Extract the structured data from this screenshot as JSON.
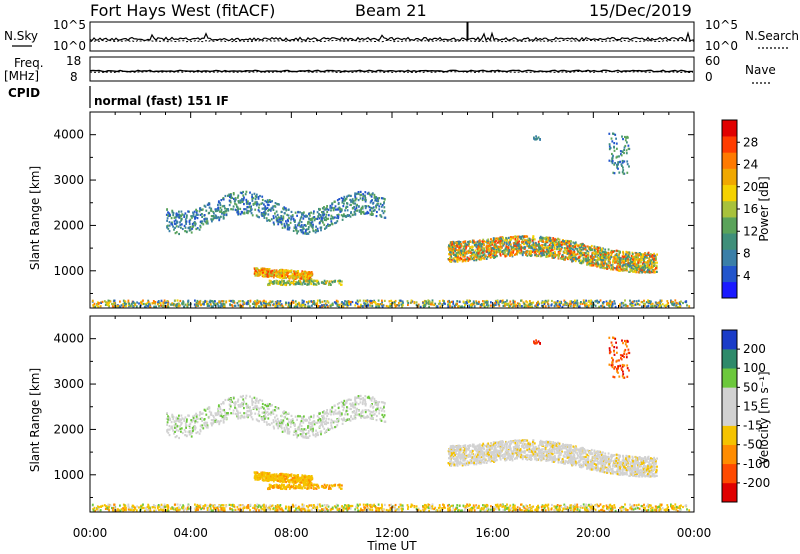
{
  "header": {
    "station": "Fort Hays West (fitACF)",
    "beam": "Beam 21",
    "date": "15/Dec/2019"
  },
  "panels": {
    "nsky": {
      "left_label": "N.Sky",
      "left_ticks": [
        "10^5",
        "10^0"
      ],
      "right_ticks": [
        "10^5",
        "10^0"
      ],
      "right_label": "N.Search"
    },
    "freq": {
      "left_label_1": "Freq.",
      "left_label_2": "[MHz]",
      "left_ticks": [
        "18",
        "8"
      ],
      "right_ticks": [
        "60",
        "0"
      ],
      "right_label": "Nave"
    },
    "cpid": {
      "label": "CPID",
      "text": "normal (fast) 151 IF"
    }
  },
  "chart_data": [
    {
      "type": "heatmap",
      "name": "power",
      "ylabel": "Slant Range [km]",
      "xlabel": "",
      "ylim": [
        180,
        4500
      ],
      "yticks": [
        "1000",
        "2000",
        "3000",
        "4000"
      ],
      "colorbar": {
        "label": "Power [dB]",
        "range": [
          0,
          32
        ],
        "ticks": [
          "4",
          "8",
          "12",
          "16",
          "20",
          "24",
          "28"
        ],
        "colors": [
          "#1a1aff",
          "#2255cc",
          "#3a7fa8",
          "#3f8f7a",
          "#5aa35a",
          "#a8c23c",
          "#f5d200",
          "#f0a800",
          "#ff7a00",
          "#ff3c00",
          "#e00000"
        ]
      }
    },
    {
      "type": "heatmap",
      "name": "velocity",
      "ylabel": "Slant Range [km]",
      "xlabel": "Time UT",
      "ylim": [
        180,
        4500
      ],
      "yticks": [
        "1000",
        "2000",
        "3000",
        "4000"
      ],
      "colorbar": {
        "label": "Velocity [m s⁻¹]",
        "ticks": [
          "200",
          "100",
          "50",
          "15",
          "-15",
          "-50",
          "-100",
          "-200"
        ],
        "colors": [
          "#1a3cc8",
          "#2e8a6a",
          "#6cc83c",
          "#d2d2d2",
          "#d2d2d2",
          "#f5c300",
          "#ff8c00",
          "#ff4a00",
          "#e00000"
        ]
      }
    }
  ],
  "time_axis": {
    "xlabel": "Time UT",
    "ticks": [
      "00:00",
      "04:00",
      "08:00",
      "12:00",
      "16:00",
      "20:00",
      "00:00"
    ]
  },
  "colors": {
    "frame": "#000000",
    "background": "#ffffff"
  }
}
